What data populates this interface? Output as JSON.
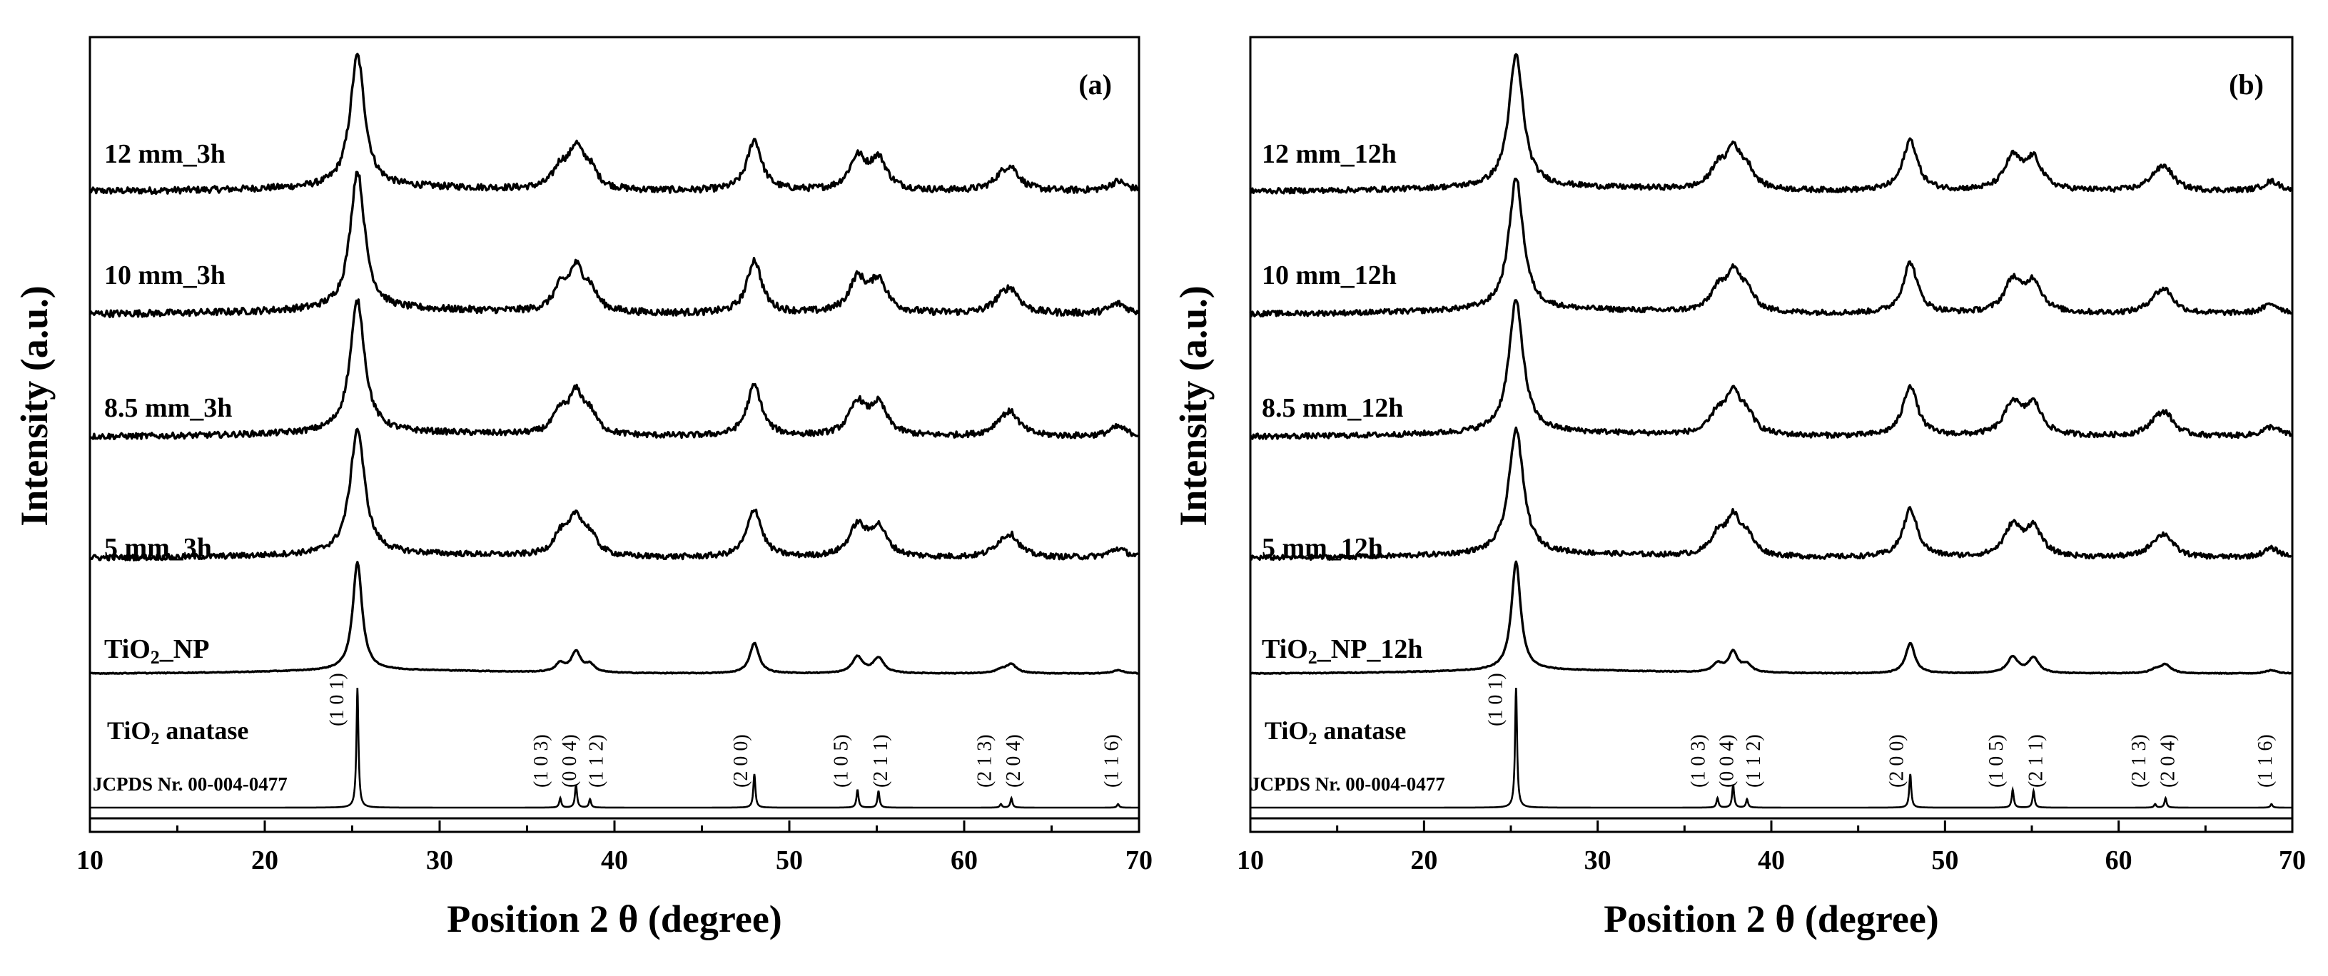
{
  "chart_data": [
    {
      "type": "line",
      "panel_letter": "(a)",
      "xlabel": "Position 2 θ (degree)",
      "ylabel": "Intensity (a.u.)",
      "xlim": [
        10,
        70
      ],
      "x_ticks": [
        "10",
        "20",
        "30",
        "40",
        "50",
        "60",
        "70"
      ],
      "y_ticks": false,
      "series": [
        {
          "name": "12 mm_3h",
          "kind": "measured",
          "label": "12 mm_3h",
          "peak_scale": 1.0,
          "noise": 1.0
        },
        {
          "name": "10 mm_3h",
          "kind": "measured",
          "label": "10 mm_3h",
          "peak_scale": 1.05,
          "noise": 1.0
        },
        {
          "name": "8.5 mm_3h",
          "kind": "measured",
          "label": "8.5 mm_3h",
          "peak_scale": 1.0,
          "noise": 0.9
        },
        {
          "name": "5 mm_3h",
          "kind": "measured",
          "label": "5 mm_3h",
          "peak_scale": 0.95,
          "noise": 0.9
        },
        {
          "name": "TiO2_NP",
          "kind": "nanoparticle",
          "label_main": "TiO",
          "label_sub": "2",
          "label_tail": "_NP",
          "peak_scale": 0.95,
          "noise": 0.15
        }
      ],
      "reference": {
        "name": "TiO2 anatase",
        "label_main": "TiO",
        "label_sub": "2",
        "label_tail": " anatase",
        "card": "JCPDS Nr. 00-004-0477",
        "peaks": [
          {
            "pos": 25.3,
            "intensity": 100,
            "hkl": "(1 0 1)"
          },
          {
            "pos": 36.9,
            "intensity": 8,
            "hkl": "(1 0 3)"
          },
          {
            "pos": 37.8,
            "intensity": 19,
            "hkl": "(0 0 4)"
          },
          {
            "pos": 38.6,
            "intensity": 7,
            "hkl": "(1 1 2)"
          },
          {
            "pos": 48.0,
            "intensity": 28,
            "hkl": "(2 0 0)"
          },
          {
            "pos": 53.9,
            "intensity": 15,
            "hkl": "(1 0 5)"
          },
          {
            "pos": 55.1,
            "intensity": 14,
            "hkl": "(2 1 1)"
          },
          {
            "pos": 62.1,
            "intensity": 3,
            "hkl": "(2 1 3)"
          },
          {
            "pos": 62.7,
            "intensity": 8,
            "hkl": "(2 0 4)"
          },
          {
            "pos": 68.8,
            "intensity": 3,
            "hkl": "(1 1 6)"
          }
        ]
      }
    },
    {
      "type": "line",
      "panel_letter": "(b)",
      "xlabel": "Position 2 θ (degree)",
      "ylabel": "Intensity (a.u.)",
      "xlim": [
        10,
        70
      ],
      "x_ticks": [
        "10",
        "20",
        "30",
        "40",
        "50",
        "60",
        "70"
      ],
      "y_ticks": false,
      "series": [
        {
          "name": "12 mm_12h",
          "kind": "measured",
          "label": "12 mm_12h",
          "peak_scale": 1.0,
          "noise": 0.8
        },
        {
          "name": "10 mm_12h",
          "kind": "measured",
          "label": "10 mm_12h",
          "peak_scale": 1.0,
          "noise": 0.8
        },
        {
          "name": "8.5 mm_12h",
          "kind": "measured",
          "label": "8.5 mm_12h",
          "peak_scale": 1.0,
          "noise": 0.8
        },
        {
          "name": "5 mm_12h",
          "kind": "measured",
          "label": "5 mm_12h",
          "peak_scale": 0.95,
          "noise": 0.8
        },
        {
          "name": "TiO2_NP_12h",
          "kind": "nanoparticle",
          "label_main": "TiO",
          "label_sub": "2",
          "label_tail": "_NP_12h",
          "peak_scale": 0.95,
          "noise": 0.15
        }
      ],
      "reference": {
        "name": "TiO2 anatase",
        "label_main": "TiO",
        "label_sub": "2",
        "label_tail": " anatase",
        "card": "JCPDS Nr. 00-004-0477",
        "peaks": [
          {
            "pos": 25.3,
            "intensity": 100,
            "hkl": "(1 0 1)"
          },
          {
            "pos": 36.9,
            "intensity": 8,
            "hkl": "(1 0 3)"
          },
          {
            "pos": 37.8,
            "intensity": 19,
            "hkl": "(0 0 4)"
          },
          {
            "pos": 38.6,
            "intensity": 7,
            "hkl": "(1 1 2)"
          },
          {
            "pos": 48.0,
            "intensity": 28,
            "hkl": "(2 0 0)"
          },
          {
            "pos": 53.9,
            "intensity": 15,
            "hkl": "(1 0 5)"
          },
          {
            "pos": 55.1,
            "intensity": 14,
            "hkl": "(2 1 1)"
          },
          {
            "pos": 62.1,
            "intensity": 3,
            "hkl": "(2 1 3)"
          },
          {
            "pos": 62.7,
            "intensity": 8,
            "hkl": "(2 0 4)"
          },
          {
            "pos": 68.8,
            "intensity": 3,
            "hkl": "(1 1 6)"
          }
        ]
      }
    }
  ]
}
